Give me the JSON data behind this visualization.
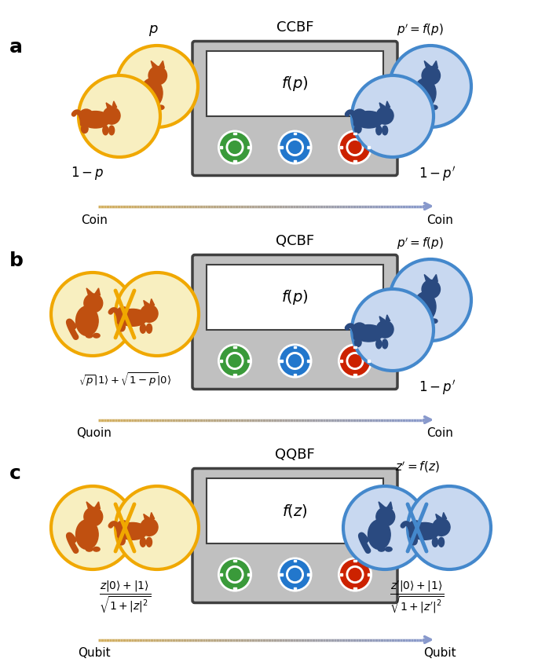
{
  "panel_labels": [
    "a",
    "b",
    "c"
  ],
  "panel_titles": [
    "CCBF",
    "QCBF",
    "QQBF"
  ],
  "box_labels_math": [
    "$f(p)$",
    "$f(p)$",
    "$f(z)$"
  ],
  "arrow_left_labels": [
    "Coin",
    "Quoin",
    "Qubit"
  ],
  "arrow_right_labels": [
    "Coin",
    "Coin",
    "Qubit"
  ],
  "chip_colors": [
    "#3a9a3a",
    "#2277cc",
    "#cc2200"
  ],
  "coin_bg_gold": "#f8efc0",
  "coin_border_gold": "#f0a800",
  "coin_bg_blue": "#c8d8f0",
  "coin_border_blue": "#4488cc",
  "cat_color_gold": "#c05010",
  "cat_color_blue": "#2a4a80",
  "box_bg": "#c0c0c0",
  "box_border": "#404040",
  "inner_box_bg": "#ffffff",
  "arrow_color_gold": "#d4b060",
  "arrow_color_blue": "#8899cc",
  "figsize": [
    6.85,
    8.48
  ],
  "dpi": 100
}
